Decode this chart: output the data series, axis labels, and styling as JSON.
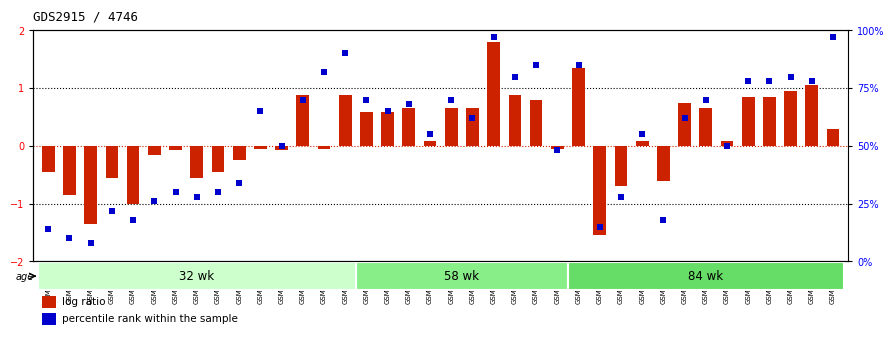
{
  "title": "GDS2915 / 4746",
  "samples": [
    "GSM97277",
    "GSM97278",
    "GSM97279",
    "GSM97280",
    "GSM97281",
    "GSM97282",
    "GSM97283",
    "GSM97284",
    "GSM97285",
    "GSM97286",
    "GSM97287",
    "GSM97288",
    "GSM97289",
    "GSM97290",
    "GSM97291",
    "GSM97292",
    "GSM97293",
    "GSM97294",
    "GSM97295",
    "GSM97296",
    "GSM97297",
    "GSM97298",
    "GSM97299",
    "GSM97300",
    "GSM97301",
    "GSM97302",
    "GSM97303",
    "GSM97304",
    "GSM97305",
    "GSM97306",
    "GSM97307",
    "GSM97308",
    "GSM97309",
    "GSM97310",
    "GSM97311",
    "GSM97312",
    "GSM97313",
    "GSM97314"
  ],
  "log_ratio": [
    -0.45,
    -0.85,
    -1.35,
    -0.55,
    -1.0,
    -0.15,
    -0.08,
    -0.55,
    -0.45,
    -0.25,
    -0.05,
    -0.08,
    0.88,
    -0.05,
    0.88,
    0.58,
    0.58,
    0.65,
    0.08,
    0.65,
    0.65,
    1.8,
    0.88,
    0.8,
    -0.05,
    1.35,
    -1.55,
    -0.7,
    0.08,
    -0.6,
    0.75,
    0.65,
    0.08,
    0.85,
    0.85,
    0.95,
    1.05,
    0.3
  ],
  "percentile": [
    14,
    10,
    8,
    22,
    18,
    26,
    30,
    28,
    30,
    34,
    65,
    50,
    70,
    82,
    90,
    70,
    65,
    68,
    55,
    70,
    62,
    97,
    80,
    85,
    48,
    85,
    15,
    28,
    55,
    18,
    62,
    70,
    50,
    78,
    78,
    80,
    78,
    97
  ],
  "groups": [
    {
      "label": "32 wk",
      "start": 0,
      "end": 15,
      "color": "#ccffcc"
    },
    {
      "label": "58 wk",
      "start": 15,
      "end": 25,
      "color": "#88ee88"
    },
    {
      "label": "84 wk",
      "start": 25,
      "end": 38,
      "color": "#66dd66"
    }
  ],
  "bar_color": "#cc2200",
  "dot_color": "#0000cc",
  "ylim": [
    -2,
    2
  ],
  "right_ylim": [
    0,
    100
  ],
  "right_yticks": [
    0,
    25,
    50,
    75,
    100
  ],
  "right_yticklabels": [
    "0%",
    "25%",
    "50%",
    "75%",
    "100%"
  ],
  "background_color": "#ffffff"
}
